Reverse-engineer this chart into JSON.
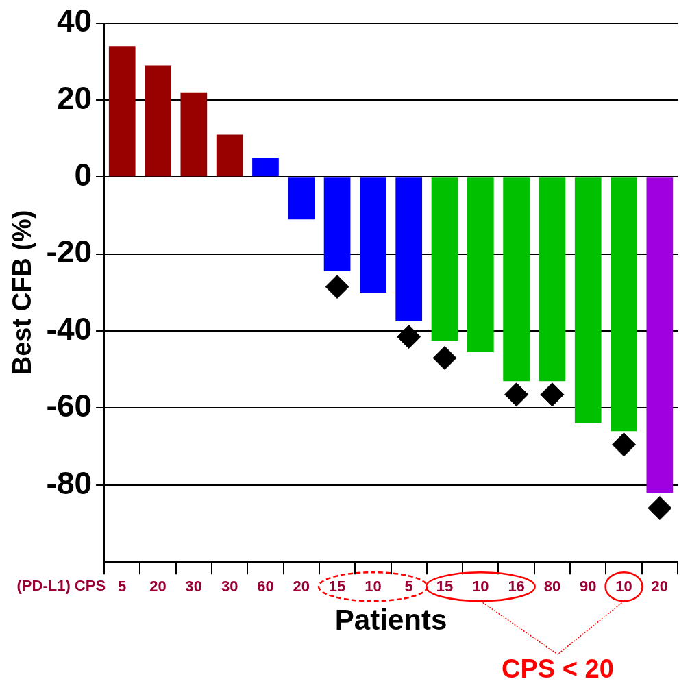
{
  "chart_data": {
    "type": "bar",
    "ylabel": "Best CFB (%)",
    "xlabel": "Patients",
    "categories": [
      "5",
      "20",
      "30",
      "30",
      "60",
      "20",
      "15",
      "10",
      "5",
      "15",
      "10",
      "16",
      "80",
      "90",
      "10",
      "20"
    ],
    "series": [
      {
        "values": [
          34,
          29,
          22,
          11,
          5,
          -11,
          -24.5,
          -30,
          -37.5,
          -42.5,
          -45.5,
          -53,
          -53,
          -64,
          -66,
          -82
        ],
        "colors": [
          "#990000",
          "#990000",
          "#990000",
          "#990000",
          "#0000ff",
          "#0000ff",
          "#0000ff",
          "#0000ff",
          "#0000ff",
          "#00c000",
          "#00c000",
          "#00c000",
          "#00c000",
          "#00c000",
          "#00c000",
          "#a000e0"
        ]
      },
      {
        "type": "scatter",
        "color": "#000000",
        "values": [
          null,
          null,
          null,
          null,
          null,
          null,
          -28.5,
          null,
          -41.5,
          -47,
          null,
          -56.5,
          -56.5,
          null,
          -69.5,
          -86
        ]
      }
    ],
    "ylim": [
      -100,
      40
    ],
    "yticks": [
      40,
      20,
      0,
      -20,
      -40,
      -60,
      -80
    ],
    "grid": "y",
    "legend": false,
    "marker": "diamond",
    "annotations": [
      "(PD-L1) CPS",
      "CPS < 20"
    ]
  }
}
